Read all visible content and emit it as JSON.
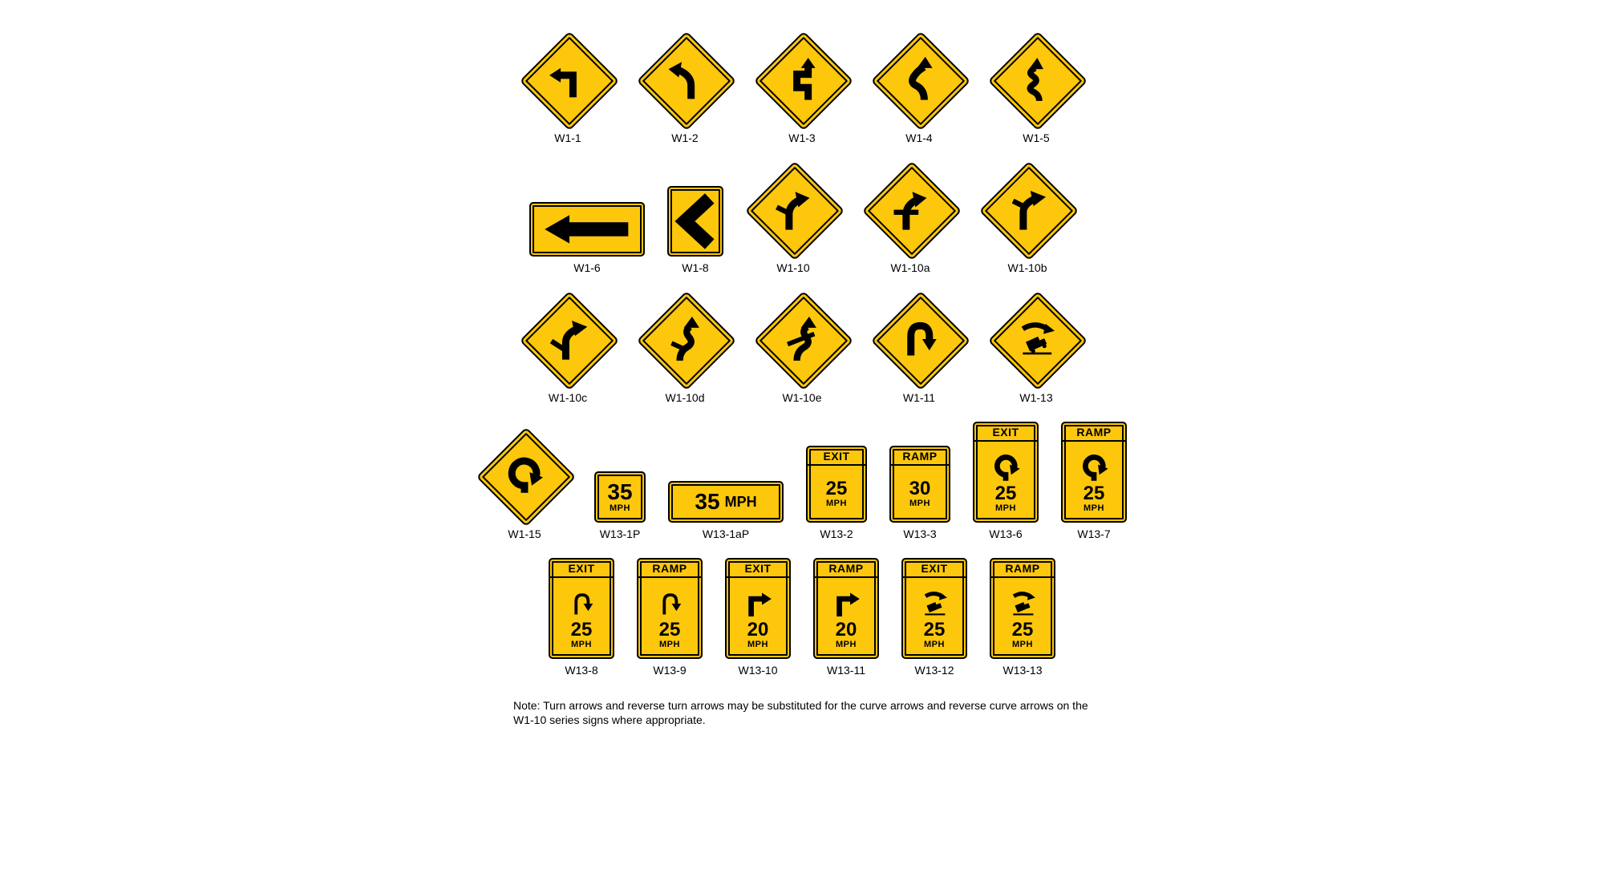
{
  "colors": {
    "sign_bg": "#fdc70c",
    "stroke": "#000000",
    "page_bg": "#ffffff"
  },
  "rows": [
    [
      {
        "code": "W1-1",
        "type": "diamond",
        "symbol": "turn-left"
      },
      {
        "code": "W1-2",
        "type": "diamond",
        "symbol": "curve-left"
      },
      {
        "code": "W1-3",
        "type": "diamond",
        "symbol": "reverse-turn-left"
      },
      {
        "code": "W1-4",
        "type": "diamond",
        "symbol": "reverse-curve-left"
      },
      {
        "code": "W1-5",
        "type": "diamond",
        "symbol": "winding-left"
      }
    ],
    [
      {
        "code": "W1-6",
        "type": "rect-h",
        "symbol": "arrow-left"
      },
      {
        "code": "W1-8",
        "type": "chev",
        "symbol": "chevron-left"
      },
      {
        "code": "W1-10",
        "type": "diamond",
        "symbol": "curve-r-side"
      },
      {
        "code": "W1-10a",
        "type": "diamond",
        "symbol": "curve-r-cross"
      },
      {
        "code": "W1-10b",
        "type": "diamond",
        "symbol": "curve-r-sideb"
      }
    ],
    [
      {
        "code": "W1-10c",
        "type": "diamond",
        "symbol": "curve-r-sidec"
      },
      {
        "code": "W1-10d",
        "type": "diamond",
        "symbol": "revcurve-r-side"
      },
      {
        "code": "W1-10e",
        "type": "diamond",
        "symbol": "revcurve-r-cross"
      },
      {
        "code": "W1-11",
        "type": "diamond",
        "symbol": "hairpin"
      },
      {
        "code": "W1-13",
        "type": "diamond",
        "symbol": "truck-rollover"
      }
    ],
    [
      {
        "code": "W1-15",
        "type": "diamond",
        "symbol": "loop"
      },
      {
        "code": "W13-1P",
        "type": "rect-sq",
        "top": "35",
        "bottom": "MPH"
      },
      {
        "code": "W13-1aP",
        "type": "rect-wide",
        "left": "35",
        "right": "MPH"
      },
      {
        "code": "W13-2",
        "type": "rect-v",
        "hdr": "EXIT",
        "num": "25",
        "mph": "MPH"
      },
      {
        "code": "W13-3",
        "type": "rect-v",
        "hdr": "RAMP",
        "num": "30",
        "mph": "MPH"
      },
      {
        "code": "W13-6",
        "type": "rect-vtall",
        "hdr": "EXIT",
        "symbol": "loop-small",
        "num": "25",
        "mph": "MPH"
      },
      {
        "code": "W13-7",
        "type": "rect-vtall",
        "hdr": "RAMP",
        "symbol": "loop-small",
        "num": "25",
        "mph": "MPH"
      }
    ],
    [
      {
        "code": "W13-8",
        "type": "rect-vtall",
        "hdr": "EXIT",
        "symbol": "hairpin-small",
        "num": "25",
        "mph": "MPH"
      },
      {
        "code": "W13-9",
        "type": "rect-vtall",
        "hdr": "RAMP",
        "symbol": "hairpin-small",
        "num": "25",
        "mph": "MPH"
      },
      {
        "code": "W13-10",
        "type": "rect-vtall",
        "hdr": "EXIT",
        "symbol": "turn-r-small",
        "num": "20",
        "mph": "MPH"
      },
      {
        "code": "W13-11",
        "type": "rect-vtall",
        "hdr": "RAMP",
        "symbol": "turn-r-small",
        "num": "20",
        "mph": "MPH"
      },
      {
        "code": "W13-12",
        "type": "rect-vtall",
        "hdr": "EXIT",
        "symbol": "truck-small",
        "num": "25",
        "mph": "MPH"
      },
      {
        "code": "W13-13",
        "type": "rect-vtall",
        "hdr": "RAMP",
        "symbol": "truck-small",
        "num": "25",
        "mph": "MPH"
      }
    ]
  ],
  "note": "Note:  Turn arrows and reverse turn arrows may be substituted for the curve arrows and reverse curve arrows on the W1-10 series signs where appropriate."
}
